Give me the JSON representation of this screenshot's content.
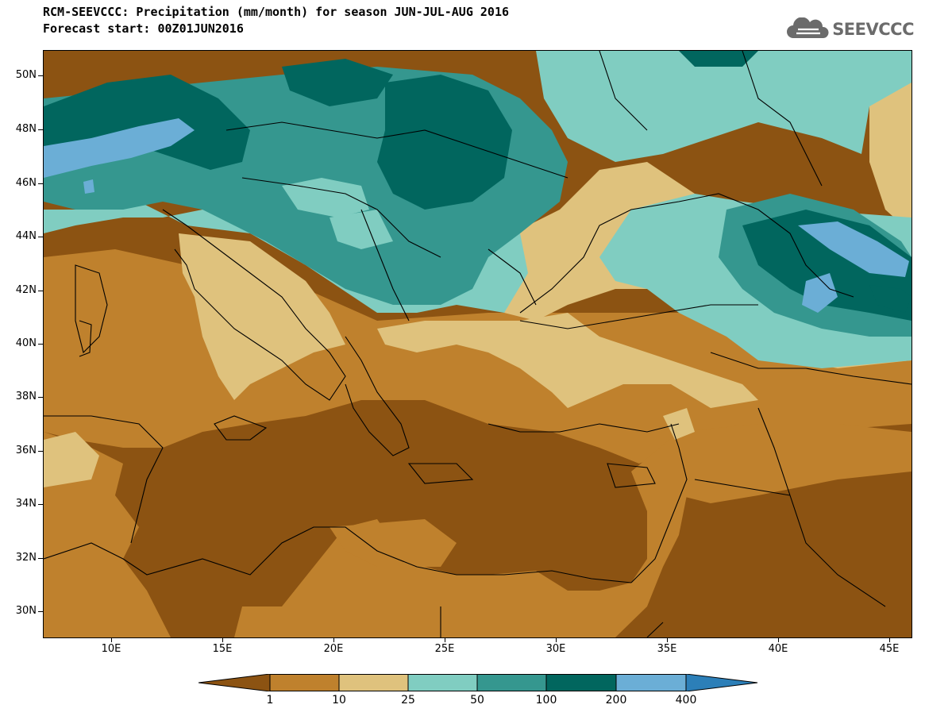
{
  "header": {
    "title_line1": "RCM-SEEVCCC: Precipitation (mm/month) for season JUN-JUL-AUG 2016",
    "title_line2": "Forecast start: 00Z01JUN2016",
    "logo_text": "SEEVCCC"
  },
  "axes": {
    "lat_labels": [
      "50N",
      "48N",
      "46N",
      "44N",
      "42N",
      "40N",
      "38N",
      "36N",
      "34N",
      "32N",
      "30N"
    ],
    "lon_labels": [
      "10E",
      "15E",
      "20E",
      "25E",
      "30E",
      "35E",
      "40E",
      "45E"
    ]
  },
  "colorbar": {
    "labels": [
      "1",
      "10",
      "25",
      "50",
      "100",
      "200",
      "400"
    ],
    "colors": [
      "#8c5312",
      "#bf812d",
      "#dfc27d",
      "#80cdc1",
      "#35978f",
      "#01665e",
      "#6baed6",
      "#2c7fb8"
    ]
  },
  "map": {
    "variable": "Precipitation",
    "units": "mm/month",
    "season": "JUN-JUL-AUG 2016",
    "forecast_start": "00Z01JUN2016"
  }
}
